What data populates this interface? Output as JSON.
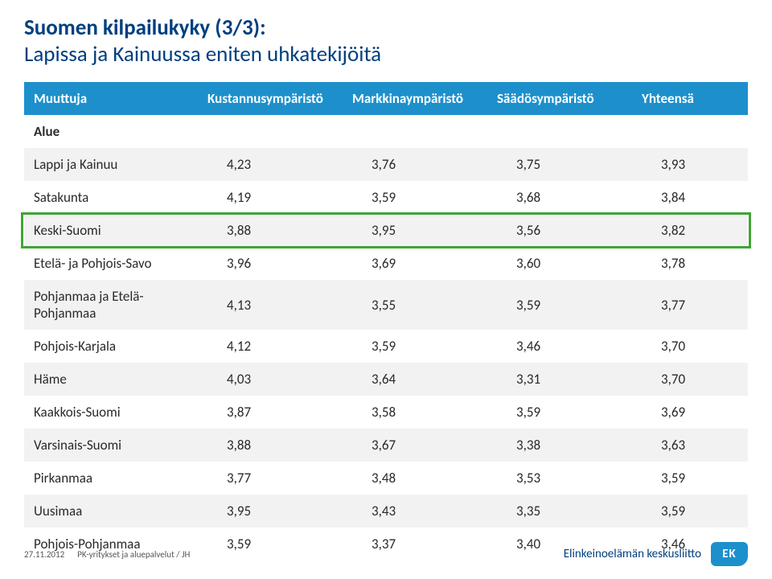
{
  "title": {
    "line1": "Suomen kilpailukyky (3/3):",
    "line2": "Lapissa ja Kainuussa eniten uhkatekijöitä"
  },
  "table": {
    "columns": [
      "Muuttuja",
      "Kustannusympäristö",
      "Markkinaympäristö",
      "Säädösympäristö",
      "Yhteensä"
    ],
    "alue_label": "Alue",
    "rows": [
      {
        "name": "Lappi ja Kainuu",
        "v": [
          "4,23",
          "3,76",
          "3,75",
          "3,93"
        ]
      },
      {
        "name": "Satakunta",
        "v": [
          "4,19",
          "3,59",
          "3,68",
          "3,84"
        ]
      },
      {
        "name": "Keski-Suomi",
        "v": [
          "3,88",
          "3,95",
          "3,56",
          "3,82"
        ]
      },
      {
        "name": "Etelä- ja Pohjois-Savo",
        "v": [
          "3,96",
          "3,69",
          "3,60",
          "3,78"
        ]
      },
      {
        "name": "Pohjanmaa ja Etelä-Pohjanmaa",
        "v": [
          "4,13",
          "3,55",
          "3,59",
          "3,77"
        ]
      },
      {
        "name": "Pohjois-Karjala",
        "v": [
          "4,12",
          "3,59",
          "3,46",
          "3,70"
        ]
      },
      {
        "name": "Häme",
        "v": [
          "4,03",
          "3,64",
          "3,31",
          "3,70"
        ]
      },
      {
        "name": "Kaakkois-Suomi",
        "v": [
          "3,87",
          "3,58",
          "3,59",
          "3,69"
        ]
      },
      {
        "name": "Varsinais-Suomi",
        "v": [
          "3,88",
          "3,67",
          "3,38",
          "3,63"
        ]
      },
      {
        "name": "Pirkanmaa",
        "v": [
          "3,77",
          "3,48",
          "3,53",
          "3,59"
        ]
      },
      {
        "name": "Uusimaa",
        "v": [
          "3,95",
          "3,43",
          "3,35",
          "3,59"
        ]
      },
      {
        "name": "Pohjois-Pohjanmaa",
        "v": [
          "3,59",
          "3,37",
          "3,40",
          "3,46"
        ]
      }
    ],
    "highlight_row_index": 2,
    "colors": {
      "header_bg": "#1d90cc",
      "header_fg": "#ffffff",
      "row_odd": "#ffffff",
      "row_even": "#f2f2f2",
      "highlight_border": "#3fa535",
      "title_color": "#003f7f"
    }
  },
  "footer": {
    "date": "27.11.2012",
    "source": "PK-yritykset ja aluepalvelut / JH",
    "org": "Elinkeinoelämän keskusliitto",
    "logo_text": "EK"
  }
}
